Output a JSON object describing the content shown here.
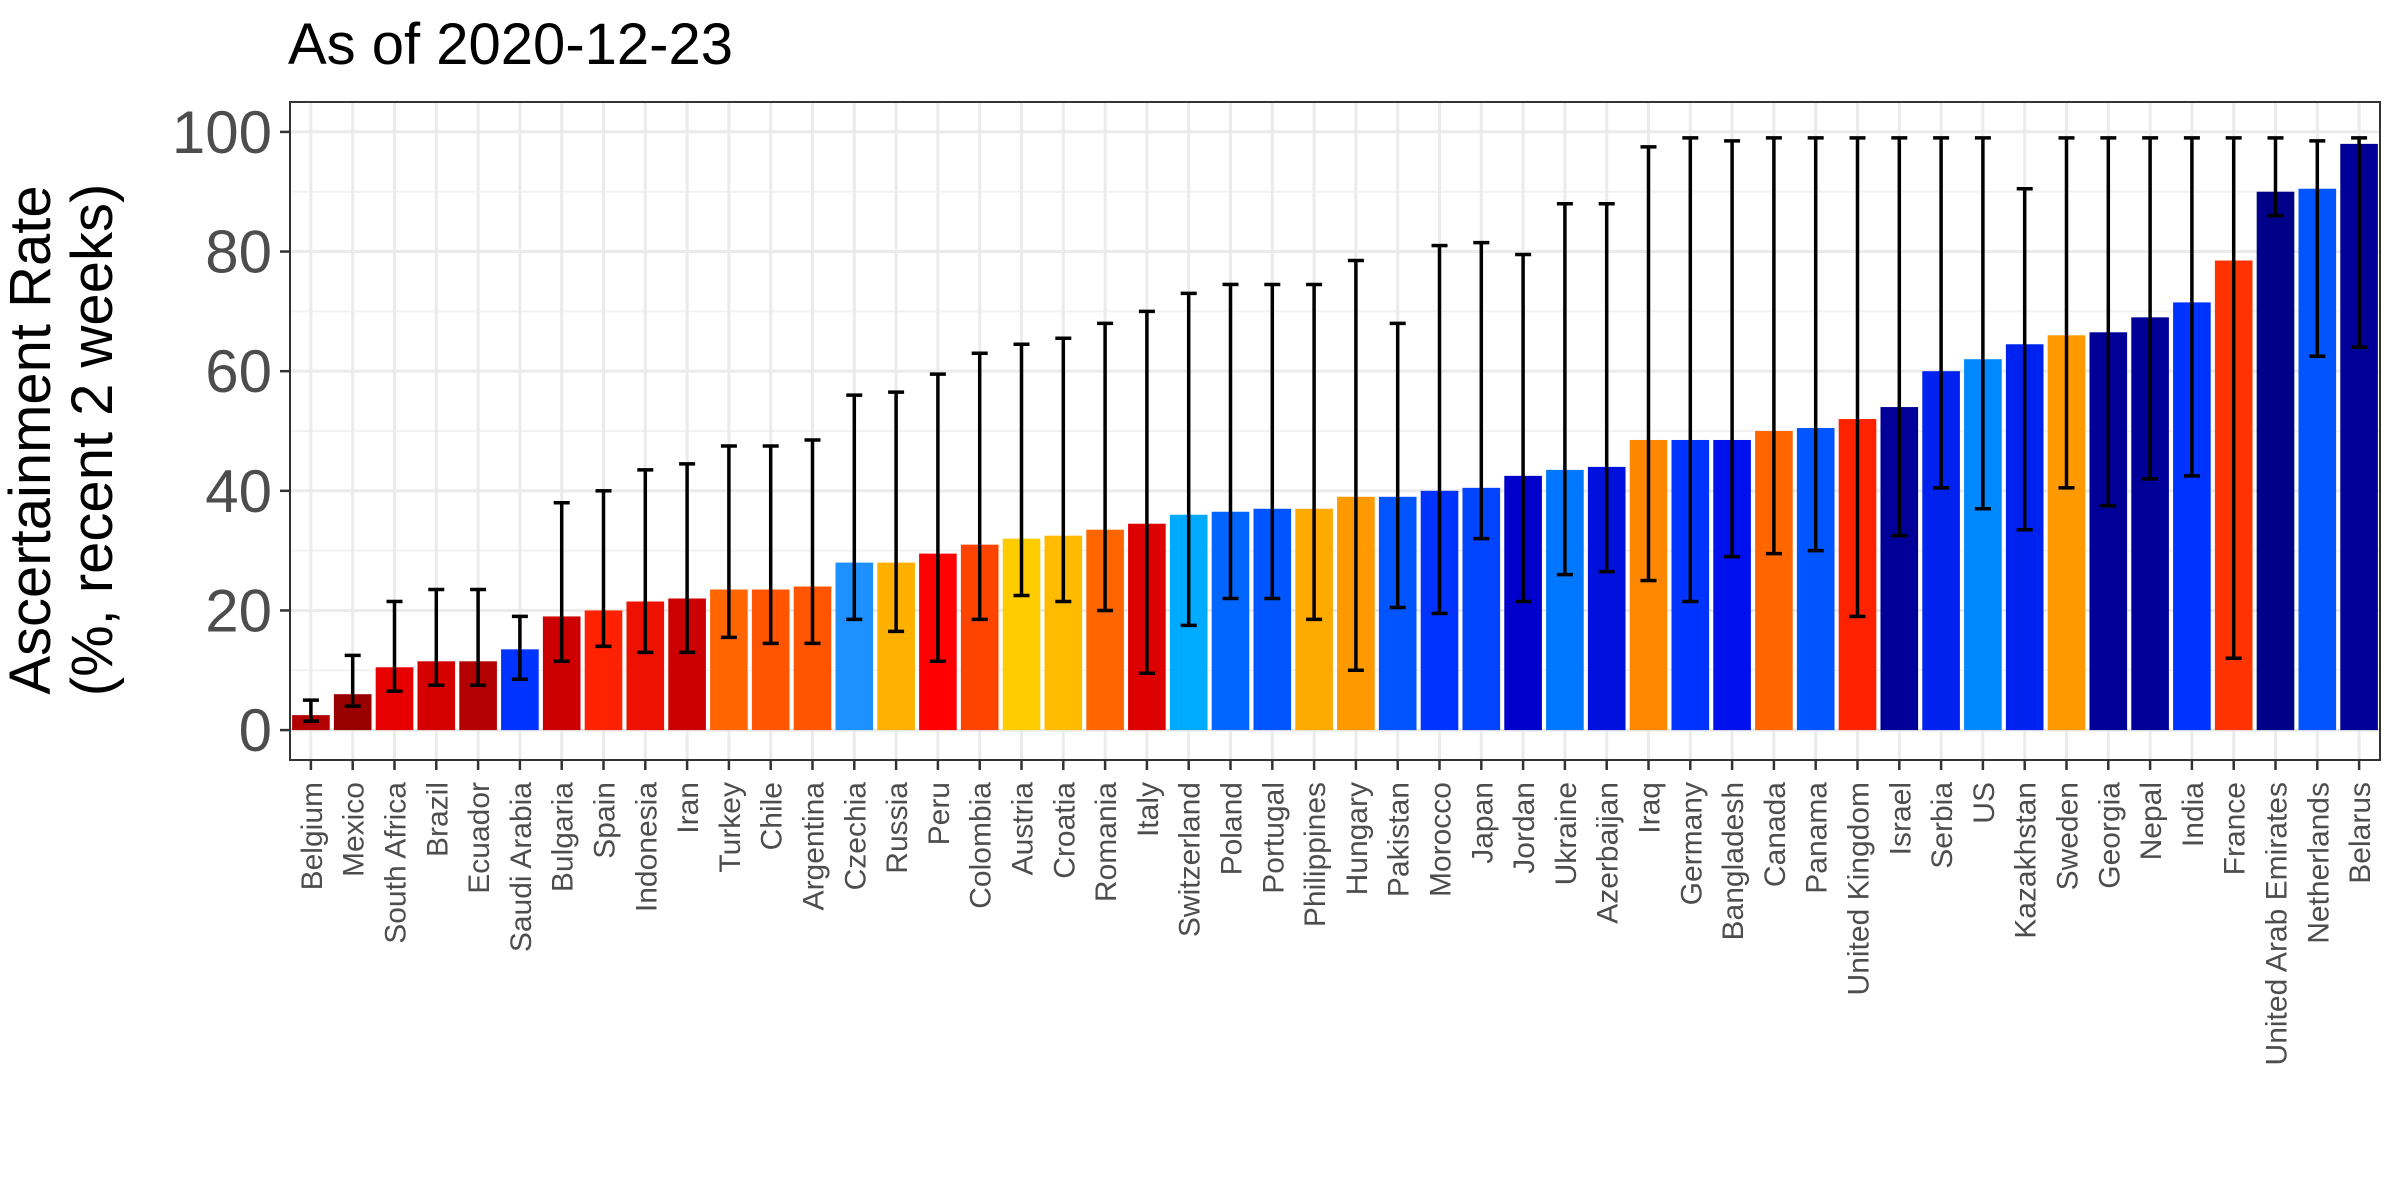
{
  "chart_data": {
    "type": "bar",
    "title": "As of 2020-12-23",
    "ylabel": [
      "Ascertainment Rate",
      "(%, recent 2 weeks)"
    ],
    "xlabel": "",
    "ylim": [
      -5,
      105
    ],
    "yticks": [
      0,
      20,
      40,
      60,
      80,
      100
    ],
    "grid": true,
    "legend": "none",
    "error_bars": true,
    "categories": [
      "Belgium",
      "Mexico",
      "South Africa",
      "Brazil",
      "Ecuador",
      "Saudi Arabia",
      "Bulgaria",
      "Spain",
      "Indonesia",
      "Iran",
      "Turkey",
      "Chile",
      "Argentina",
      "Czechia",
      "Russia",
      "Peru",
      "Colombia",
      "Austria",
      "Croatia",
      "Romania",
      "Italy",
      "Switzerland",
      "Poland",
      "Portugal",
      "Philippines",
      "Hungary",
      "Pakistan",
      "Morocco",
      "Japan",
      "Jordan",
      "Ukraine",
      "Azerbaijan",
      "Iraq",
      "Germany",
      "Bangladesh",
      "Canada",
      "Panama",
      "United Kingdom",
      "Israel",
      "Serbia",
      "US",
      "Kazakhstan",
      "Sweden",
      "Georgia",
      "Nepal",
      "India",
      "France",
      "United Arab Emirates",
      "Netherlands",
      "Belarus"
    ],
    "values": [
      2.5,
      6,
      10.5,
      11.5,
      11.5,
      13.5,
      19,
      20,
      21.5,
      22,
      23.5,
      23.5,
      24,
      28,
      28,
      29.5,
      31,
      32,
      32.5,
      33.5,
      34.5,
      36,
      36.5,
      37,
      37,
      39,
      39,
      40,
      40.5,
      42.5,
      43.5,
      44,
      48.5,
      48.5,
      48.5,
      50,
      50.5,
      52,
      54,
      60,
      62,
      64.5,
      66,
      66.5,
      69,
      71.5,
      78.5,
      90,
      90.5,
      98
    ],
    "lower": [
      1.5,
      4,
      6.5,
      7.5,
      7.5,
      8.5,
      11.5,
      14,
      13,
      13,
      15.5,
      14.5,
      14.5,
      18.5,
      16.5,
      11.5,
      18.5,
      22.5,
      21.5,
      20,
      9.5,
      17.5,
      22,
      22,
      18.5,
      10,
      20.5,
      19.5,
      32,
      21.5,
      26,
      26.5,
      25,
      21.5,
      29,
      29.5,
      30,
      19,
      32.5,
      40.5,
      37,
      33.5,
      40.5,
      37.5,
      42,
      42.5,
      12,
      86,
      62.5,
      64
    ],
    "upper": [
      5,
      12.5,
      21.5,
      23.5,
      23.5,
      19,
      38,
      40,
      43.5,
      44.5,
      47.5,
      47.5,
      48.5,
      56,
      56.5,
      59.5,
      63,
      64.5,
      65.5,
      68,
      70,
      73,
      74.5,
      74.5,
      74.5,
      78.5,
      68,
      81,
      81.5,
      79.5,
      88,
      88,
      97.5,
      99,
      98.5,
      99,
      99,
      99,
      99,
      99,
      99,
      90.5,
      99,
      99,
      99,
      99,
      99,
      99,
      98.5,
      99
    ],
    "colors": [
      "#b30000",
      "#990000",
      "#e60000",
      "#d40000",
      "#b30000",
      "#0033ff",
      "#cc0000",
      "#ff2200",
      "#ee1100",
      "#cc0000",
      "#ff6600",
      "#ff5500",
      "#ff5500",
      "#1e90ff",
      "#ffb000",
      "#ff0000",
      "#ff4400",
      "#ffcc00",
      "#ffbb00",
      "#ff6600",
      "#dd0000",
      "#00aaff",
      "#0066ff",
      "#0055ff",
      "#ffaa00",
      "#ff9900",
      "#0055ff",
      "#0033ff",
      "#0044ff",
      "#0000cc",
      "#0077ff",
      "#0011dd",
      "#ff8800",
      "#0033ff",
      "#0011ee",
      "#ff6600",
      "#0055ff",
      "#ff2200",
      "#000099",
      "#0022ee",
      "#0088ff",
      "#0022ee",
      "#ff9900",
      "#000099",
      "#000099",
      "#0033ff",
      "#ff3300",
      "#000088",
      "#0055ff",
      "#000099"
    ]
  }
}
